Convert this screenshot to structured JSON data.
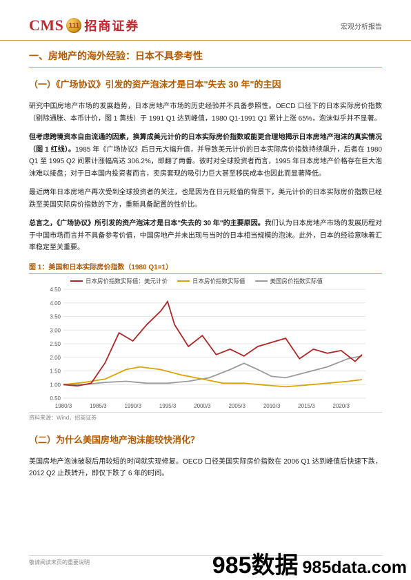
{
  "header": {
    "logo_cms": "CMS",
    "logo_badge": "111",
    "logo_cn": "招商证券",
    "doc_type": "宏观分析报告"
  },
  "section1": {
    "title": "一、房地产的海外经验：日本不具参考性",
    "sub1_title": "（一）《广场协议》引发的资产泡沫才是日本\"失去 30 年\"的主因",
    "p1": "研究中国房地产市场的发展趋势，日本房地产市场的历史经验并不具备参照性。OECD 口径下的日本实际房价指数（剔除通胀、本币计价，图 1 黄线）于 1991 Q1 达到峰值，1980 Q1-1991 Q1 累计上涨 65%，泡沫似乎并不显著。",
    "p2_lead": "但考虑跨境资本自由流通的因素，换算成美元计价的日本实际房价指数或能更合理地揭示日本房地产泡沫的真实情况（图 1 红线）。",
    "p2_rest": "1985 年《广场协议》后日元大幅升值，并导致美元计价的日本实际房价指数持续飙升，后者在 1980 Q1 至 1995 Q2 间累计涨幅高达 306.2%，即翻了两番。彼时对全球投资者而言，1995 年日本房地产价格存在巨大泡沫难以接盘；对于日本国内投资者而言，卖房套现的吸引力巨大甚至移民成本也因此而显著降低。",
    "p3": "最近两年日本房地产再次受到全球投资者的关注，也是因为在日元贬值的背景下，美元计价的日本实际房价指数已经跌至美国实际房价指数的下方，重新具备配置的性价比。",
    "p4_lead": "总言之，《广场协议》所引发的资产泡沫才是日本\"失去的 30 年\"的主要原因。",
    "p4_rest": "我们认为日本房地产市场的发展历程对于中国市场而言并不具备参考价值，中国房地产并未出现与当时的日本相当规模的泡沫。此外，日本的经验意味着汇率稳定至关重要。"
  },
  "figure1": {
    "title": "图 1：美国和日本实际房价指数（1980 Q1=1）",
    "legend": [
      {
        "label": "日本房价指数实际值：美元计价",
        "color": "#b02525"
      },
      {
        "label": "日本房价指数实际值",
        "color": "#d9a400"
      },
      {
        "label": "美国房价指数实际值",
        "color": "#9a9a9a"
      }
    ],
    "type": "line",
    "background_color": "#ffffff",
    "grid_color": "#e5e5e5",
    "axis_color": "#555555",
    "axis_fontsize": 8,
    "xlim": [
      "1980/3",
      "2023/3"
    ],
    "ylim": [
      0.5,
      4.5
    ],
    "ytick_step": 0.5,
    "yticks": [
      "0.50",
      "1.00",
      "1.50",
      "2.00",
      "2.50",
      "3.00",
      "3.50",
      "4.00",
      "4.50"
    ],
    "xticks": [
      "1980/3",
      "1985/3",
      "1990/3",
      "1995/3",
      "2000/3",
      "2005/3",
      "2010/3",
      "2015/3",
      "2020/3"
    ],
    "line_width": 1.8,
    "series": {
      "jp_usd": {
        "color": "#b02525",
        "x": [
          1980,
          1982,
          1984,
          1986,
          1988,
          1990,
          1992,
          1994,
          1995,
          1996,
          1998,
          2000,
          2002,
          2004,
          2006,
          2008,
          2010,
          2012,
          2014,
          2016,
          2018,
          2020,
          2022,
          2023
        ],
        "y": [
          1.0,
          0.95,
          1.05,
          1.8,
          2.9,
          2.6,
          3.2,
          3.7,
          4.05,
          3.2,
          2.4,
          2.8,
          2.1,
          2.3,
          2.05,
          2.4,
          2.55,
          2.7,
          1.95,
          2.3,
          2.15,
          2.25,
          1.85,
          2.1
        ]
      },
      "jp_local": {
        "color": "#d9a400",
        "x": [
          1980,
          1983,
          1986,
          1989,
          1991,
          1994,
          1997,
          2000,
          2003,
          2006,
          2009,
          2012,
          2015,
          2018,
          2021,
          2023
        ],
        "y": [
          1.0,
          1.08,
          1.2,
          1.55,
          1.65,
          1.55,
          1.35,
          1.2,
          1.05,
          1.05,
          0.98,
          0.92,
          0.98,
          1.05,
          1.12,
          1.18
        ]
      },
      "us": {
        "color": "#9a9a9a",
        "x": [
          1980,
          1983,
          1986,
          1989,
          1992,
          1995,
          1998,
          2001,
          2004,
          2006,
          2008,
          2010,
          2012,
          2015,
          2018,
          2021,
          2023
        ],
        "y": [
          1.0,
          1.0,
          1.08,
          1.12,
          1.05,
          1.05,
          1.12,
          1.25,
          1.55,
          1.78,
          1.55,
          1.3,
          1.25,
          1.45,
          1.65,
          1.95,
          2.05
        ]
      }
    },
    "source": "资料来源：Wind，招商证券"
  },
  "section2": {
    "title": "（二）为什么美国房地产泡沫能较快消化？",
    "p1": "美国房地产泡沫破裂后用较短的时间就实现修复。OECD 口径美国实际房价指数在 2006 Q1 达到峰值后快速下跌，2012 Q2 止跌转升，即仅下跌了 6 年的时间。"
  },
  "footer": {
    "note": "敬请阅读末页的重要说明"
  },
  "watermark": {
    "a": "985数据",
    "b": "985data.com"
  }
}
